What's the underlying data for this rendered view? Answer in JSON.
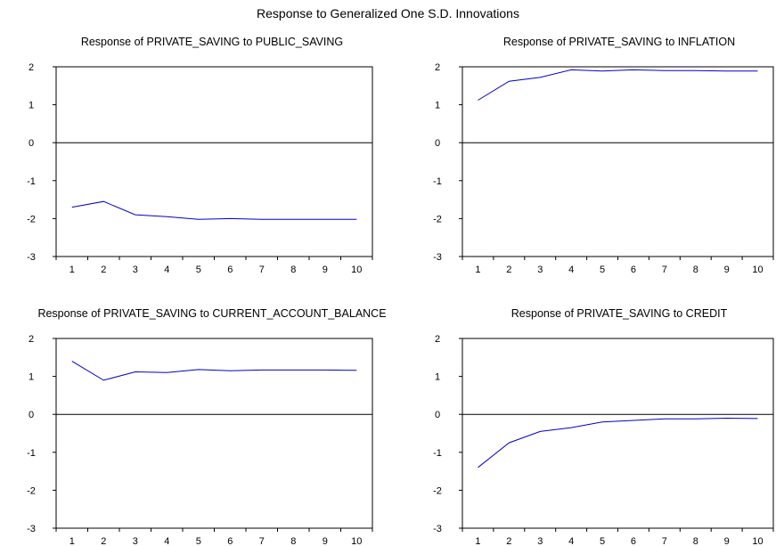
{
  "title": "Response to Generalized One S.D. Innovations",
  "colors": {
    "line": "#0000cc",
    "frame": "#000000",
    "zero": "#000000"
  },
  "chart_data": [
    {
      "type": "line",
      "title": "Response of PRIVATE_SAVING to PUBLIC_SAVING",
      "x": [
        1,
        2,
        3,
        4,
        5,
        6,
        7,
        8,
        9,
        10
      ],
      "x_ticks": [
        "1",
        "2",
        "3",
        "4",
        "5",
        "6",
        "7",
        "8",
        "9",
        "10"
      ],
      "y_ticks": [
        "2",
        "1",
        "0",
        "-1",
        "-2",
        "-3"
      ],
      "ylim": [
        -3,
        2
      ],
      "series": [
        {
          "values": [
            -1.7,
            -1.55,
            -1.9,
            -1.95,
            -2.02,
            -2.0,
            -2.02,
            -2.02,
            -2.02,
            -2.02
          ]
        }
      ]
    },
    {
      "type": "line",
      "title": "Response of PRIVATE_SAVING to INFLATION",
      "x": [
        1,
        2,
        3,
        4,
        5,
        6,
        7,
        8,
        9,
        10
      ],
      "x_ticks": [
        "1",
        "2",
        "3",
        "4",
        "5",
        "6",
        "7",
        "8",
        "9",
        "10"
      ],
      "y_ticks": [
        "2",
        "1",
        "0",
        "-1",
        "-2",
        "-3"
      ],
      "ylim": [
        -3,
        2
      ],
      "series": [
        {
          "values": [
            1.12,
            1.62,
            1.72,
            1.92,
            1.89,
            1.92,
            1.9,
            1.9,
            1.89,
            1.89
          ]
        }
      ]
    },
    {
      "type": "line",
      "title": "Response of PRIVATE_SAVING to CURRENT_ACCOUNT_BALANCE",
      "x": [
        1,
        2,
        3,
        4,
        5,
        6,
        7,
        8,
        9,
        10
      ],
      "x_ticks": [
        "1",
        "2",
        "3",
        "4",
        "5",
        "6",
        "7",
        "8",
        "9",
        "10"
      ],
      "y_ticks": [
        "2",
        "1",
        "0",
        "-1",
        "-2",
        "-3"
      ],
      "ylim": [
        -3,
        2
      ],
      "series": [
        {
          "values": [
            1.4,
            0.9,
            1.12,
            1.1,
            1.18,
            1.15,
            1.17,
            1.17,
            1.17,
            1.16
          ]
        }
      ]
    },
    {
      "type": "line",
      "title": "Response of PRIVATE_SAVING to CREDIT",
      "x": [
        1,
        2,
        3,
        4,
        5,
        6,
        7,
        8,
        9,
        10
      ],
      "x_ticks": [
        "1",
        "2",
        "3",
        "4",
        "5",
        "6",
        "7",
        "8",
        "9",
        "10"
      ],
      "y_ticks": [
        "2",
        "1",
        "0",
        "-1",
        "-2",
        "-3"
      ],
      "ylim": [
        -3,
        2
      ],
      "series": [
        {
          "values": [
            -1.4,
            -0.75,
            -0.45,
            -0.35,
            -0.2,
            -0.16,
            -0.12,
            -0.12,
            -0.1,
            -0.11
          ]
        }
      ]
    }
  ]
}
